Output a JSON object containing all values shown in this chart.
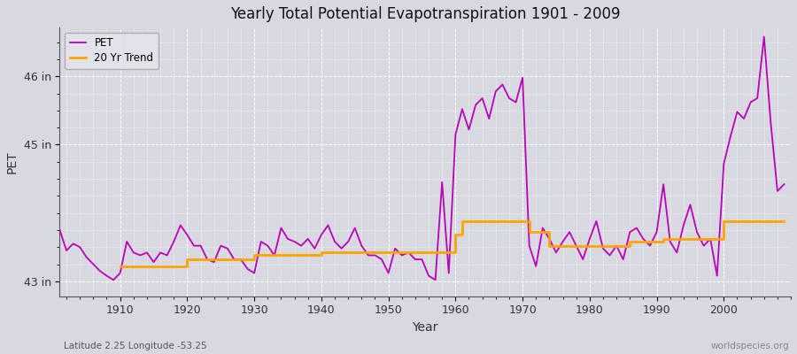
{
  "title": "Yearly Total Potential Evapotranspiration 1901 - 2009",
  "ylabel": "PET",
  "xlabel": "Year",
  "subtitle_left": "Latitude 2.25 Longitude -53.25",
  "subtitle_right": "worldspecies.org",
  "ylim": [
    42.78,
    46.72
  ],
  "ytick_positions": [
    43,
    45,
    46
  ],
  "ytick_labels": [
    "43 in",
    "45 in",
    "46 in"
  ],
  "xlim": [
    1901,
    2010
  ],
  "xtick_positions": [
    1910,
    1920,
    1930,
    1940,
    1950,
    1960,
    1970,
    1980,
    1990,
    2000
  ],
  "bg_color": "#d8d8e0",
  "pet_color": "#bb00bb",
  "trend_color": "#FFA500",
  "years": [
    1901,
    1902,
    1903,
    1904,
    1905,
    1906,
    1907,
    1908,
    1909,
    1910,
    1911,
    1912,
    1913,
    1914,
    1915,
    1916,
    1917,
    1918,
    1919,
    1920,
    1921,
    1922,
    1923,
    1924,
    1925,
    1926,
    1927,
    1928,
    1929,
    1930,
    1931,
    1932,
    1933,
    1934,
    1935,
    1936,
    1937,
    1938,
    1939,
    1940,
    1941,
    1942,
    1943,
    1944,
    1945,
    1946,
    1947,
    1948,
    1949,
    1950,
    1951,
    1952,
    1953,
    1954,
    1955,
    1956,
    1957,
    1958,
    1959,
    1960,
    1961,
    1962,
    1963,
    1964,
    1965,
    1966,
    1967,
    1968,
    1969,
    1970,
    1971,
    1972,
    1973,
    1974,
    1975,
    1976,
    1977,
    1978,
    1979,
    1980,
    1981,
    1982,
    1983,
    1984,
    1985,
    1986,
    1987,
    1988,
    1989,
    1990,
    1991,
    1992,
    1993,
    1994,
    1995,
    1996,
    1997,
    1998,
    1999,
    2000,
    2001,
    2002,
    2003,
    2004,
    2005,
    2006,
    2007,
    2008,
    2009
  ],
  "pet": [
    43.75,
    43.45,
    43.55,
    43.5,
    43.35,
    43.25,
    43.15,
    43.08,
    43.02,
    43.12,
    43.58,
    43.42,
    43.38,
    43.42,
    43.28,
    43.42,
    43.38,
    43.58,
    43.82,
    43.68,
    43.52,
    43.52,
    43.32,
    43.28,
    43.52,
    43.48,
    43.32,
    43.32,
    43.18,
    43.12,
    43.58,
    43.52,
    43.38,
    43.78,
    43.62,
    43.58,
    43.52,
    43.62,
    43.48,
    43.68,
    43.82,
    43.58,
    43.48,
    43.58,
    43.78,
    43.52,
    43.38,
    43.38,
    43.32,
    43.12,
    43.48,
    43.38,
    43.42,
    43.32,
    43.32,
    43.08,
    43.02,
    44.45,
    43.12,
    45.15,
    45.52,
    45.22,
    45.58,
    45.68,
    45.38,
    45.78,
    45.88,
    45.68,
    45.62,
    45.98,
    43.52,
    43.22,
    43.78,
    43.62,
    43.42,
    43.58,
    43.72,
    43.52,
    43.32,
    43.62,
    43.88,
    43.48,
    43.38,
    43.52,
    43.32,
    43.72,
    43.78,
    43.62,
    43.52,
    43.72,
    44.42,
    43.58,
    43.42,
    43.82,
    44.12,
    43.72,
    43.52,
    43.62,
    43.08,
    44.72,
    45.12,
    45.48,
    45.38,
    45.62,
    45.68,
    46.58,
    45.32,
    44.32,
    44.42
  ],
  "trend": [
    null,
    null,
    null,
    null,
    null,
    null,
    null,
    null,
    null,
    43.22,
    43.22,
    43.22,
    43.22,
    43.22,
    43.22,
    43.22,
    43.22,
    43.22,
    43.22,
    43.32,
    43.32,
    43.32,
    43.32,
    43.32,
    43.32,
    43.32,
    43.32,
    43.32,
    43.32,
    43.38,
    43.38,
    43.38,
    43.38,
    43.38,
    43.38,
    43.38,
    43.38,
    43.38,
    43.38,
    43.42,
    43.42,
    43.42,
    43.42,
    43.42,
    43.42,
    43.42,
    43.42,
    43.42,
    43.42,
    43.42,
    43.42,
    43.42,
    43.42,
    43.42,
    43.42,
    43.42,
    43.42,
    43.42,
    43.42,
    43.68,
    43.88,
    43.88,
    43.88,
    43.88,
    43.88,
    43.88,
    43.88,
    43.88,
    43.88,
    43.88,
    43.72,
    43.72,
    43.72,
    43.52,
    43.52,
    43.52,
    43.52,
    43.52,
    43.52,
    43.52,
    43.52,
    43.52,
    43.52,
    43.52,
    43.52,
    43.58,
    43.58,
    43.58,
    43.58,
    43.58,
    43.62,
    43.62,
    43.62,
    43.62,
    43.62,
    43.62,
    43.62,
    43.62,
    43.62,
    43.88,
    43.88,
    43.88,
    43.88,
    43.88,
    43.88,
    43.88,
    43.88,
    43.88,
    43.88
  ]
}
